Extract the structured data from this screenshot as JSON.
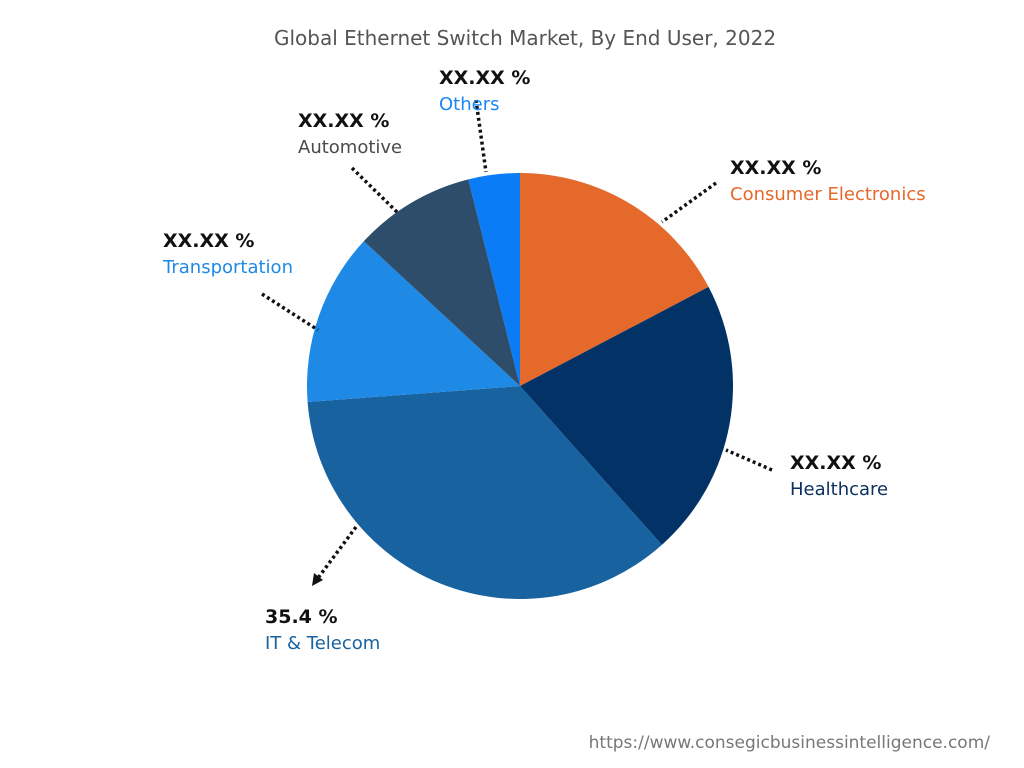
{
  "chart_data": {
    "type": "pie",
    "title": "Global Ethernet Switch Market, By End User, 2022",
    "start": "12 o'clock, clockwise",
    "slices": [
      {
        "name": "Consumer Electronics",
        "value": 17.3,
        "label": "XX.XX %",
        "color": "#e4692a",
        "label_color": "#e4692a"
      },
      {
        "name": "Healthcare",
        "value": 21.1,
        "label": "XX.XX %",
        "color": "#033266",
        "label_color": "#0b2f5e"
      },
      {
        "name": "IT & Telecom",
        "value": 35.4,
        "label": "35.4 %",
        "color": "#17629f",
        "label_color": "#17629f"
      },
      {
        "name": "Transportation",
        "value": 13.1,
        "label": "XX.XX %",
        "color": "#1e8ae5",
        "label_color": "#1e8ae5"
      },
      {
        "name": "Automotive",
        "value": 9.2,
        "label": "XX.XX %",
        "color": "#2e4d6b",
        "label_color": "#4a4a4a"
      },
      {
        "name": "Others",
        "value": 3.9,
        "label": "XX.XX %",
        "color": "#0a7cf5",
        "label_color": "#1a86f5"
      }
    ],
    "legend": "none"
  },
  "footer": {
    "url": "https://www.consegicbusinessintelligence.com/"
  }
}
